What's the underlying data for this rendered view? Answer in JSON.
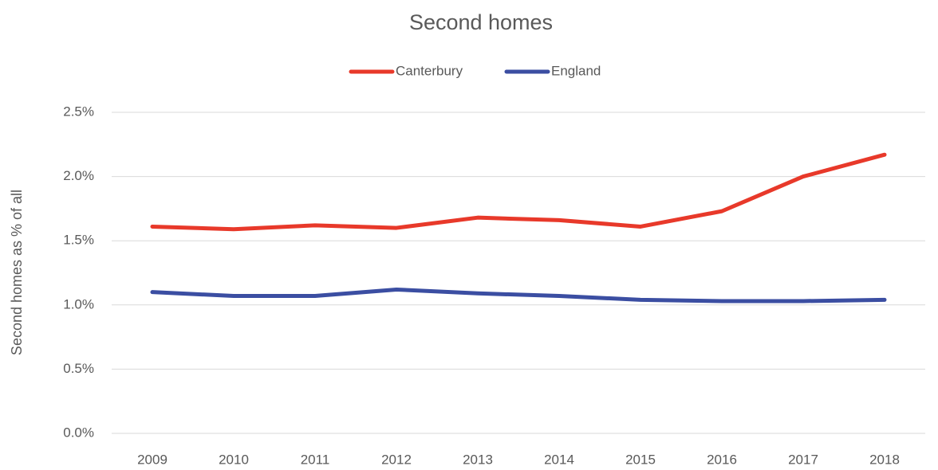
{
  "chart_data": {
    "type": "line",
    "title": "Second homes",
    "y_label": "Second homes as % of all",
    "categories": [
      "2009",
      "2010",
      "2011",
      "2012",
      "2013",
      "2014",
      "2015",
      "2016",
      "2017",
      "2018"
    ],
    "series": [
      {
        "name": "Canterbury",
        "color": "#e8392a",
        "values": [
          1.61,
          1.59,
          1.62,
          1.6,
          1.68,
          1.66,
          1.61,
          1.73,
          2.0,
          2.17
        ]
      },
      {
        "name": "England",
        "color": "#3b4ea2",
        "values": [
          1.1,
          1.07,
          1.07,
          1.12,
          1.09,
          1.07,
          1.04,
          1.03,
          1.03,
          1.04
        ]
      }
    ],
    "ylim": [
      0,
      2.5
    ],
    "yticks": [
      {
        "value": 0,
        "label": "0.0%"
      },
      {
        "value": 0.5,
        "label": "0.5%"
      },
      {
        "value": 1,
        "label": "1.0%"
      },
      {
        "value": 1.5,
        "label": "1.5%"
      },
      {
        "value": 2,
        "label": "2.0%"
      },
      {
        "value": 2.5,
        "label": "2.5%"
      }
    ],
    "grid": true,
    "legend": "top"
  }
}
